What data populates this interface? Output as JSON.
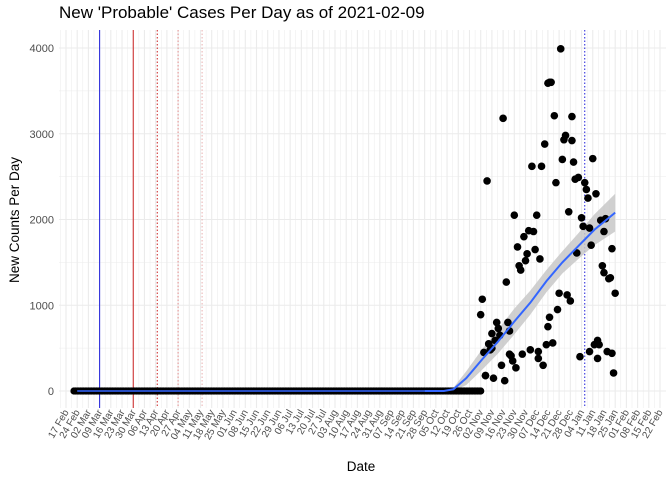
{
  "chart_data": {
    "type": "scatter",
    "title": "New 'Probable' Cases Per Day as of 2021-02-09",
    "xlabel": "Date",
    "ylabel": "New Counts Per Day",
    "ylim": [
      -200,
      4200
    ],
    "yticks": [
      0,
      1000,
      2000,
      3000,
      4000
    ],
    "x_range_days": [
      0,
      371
    ],
    "x_tick_labels": [
      "17 Feb",
      "24 Feb",
      "02 Mar",
      "09 Mar",
      "16 Mar",
      "23 Mar",
      "30 Mar",
      "06 Apr",
      "13 Apr",
      "20 Apr",
      "27 Apr",
      "04 May",
      "11 May",
      "18 May",
      "25 May",
      "01 Jun",
      "08 Jun",
      "15 Jun",
      "22 Jun",
      "29 Jun",
      "06 Jul",
      "13 Jul",
      "20 Jul",
      "27 Jul",
      "03 Aug",
      "10 Aug",
      "17 Aug",
      "24 Aug",
      "31 Aug",
      "07 Sep",
      "14 Sep",
      "21 Sep",
      "28 Sep",
      "05 Oct",
      "12 Oct",
      "19 Oct",
      "26 Oct",
      "02 Nov",
      "09 Nov",
      "16 Nov",
      "23 Nov",
      "30 Nov",
      "07 Dec",
      "14 Dec",
      "21 Dec",
      "28 Dec",
      "04 Jan",
      "11 Jan",
      "18 Jan",
      "25 Jan",
      "01 Feb",
      "08 Feb",
      "15 Feb",
      "22 Feb"
    ],
    "x_tick_days": [
      0,
      7,
      14,
      21,
      28,
      35,
      42,
      49,
      56,
      63,
      70,
      77,
      84,
      91,
      98,
      105,
      112,
      119,
      126,
      133,
      140,
      147,
      154,
      161,
      168,
      175,
      182,
      189,
      196,
      203,
      210,
      217,
      224,
      231,
      238,
      245,
      252,
      259,
      266,
      273,
      280,
      287,
      294,
      301,
      308,
      315,
      322,
      329,
      336,
      343,
      350,
      357,
      364,
      371
    ],
    "zero_series": {
      "name": "zero days",
      "start_day": 5,
      "end_day": 259,
      "value": 0
    },
    "points": [
      [
        259,
        890
      ],
      [
        260,
        1070
      ],
      [
        261,
        450
      ],
      [
        262,
        180
      ],
      [
        263,
        2450
      ],
      [
        264,
        550
      ],
      [
        265,
        480
      ],
      [
        266,
        670
      ],
      [
        267,
        150
      ],
      [
        268,
        590
      ],
      [
        269,
        800
      ],
      [
        270,
        730
      ],
      [
        271,
        650
      ],
      [
        272,
        300
      ],
      [
        273,
        3180
      ],
      [
        274,
        120
      ],
      [
        275,
        1270
      ],
      [
        276,
        800
      ],
      [
        277,
        700
      ],
      [
        278,
        410
      ],
      [
        279,
        350
      ],
      [
        280,
        2050
      ],
      [
        281,
        270
      ],
      [
        282,
        1680
      ],
      [
        283,
        1460
      ],
      [
        284,
        1410
      ],
      [
        285,
        430
      ],
      [
        286,
        1800
      ],
      [
        287,
        1520
      ],
      [
        288,
        1600
      ],
      [
        289,
        1870
      ],
      [
        290,
        480
      ],
      [
        291,
        2620
      ],
      [
        292,
        1860
      ],
      [
        293,
        1650
      ],
      [
        294,
        2050
      ],
      [
        295,
        460
      ],
      [
        296,
        1540
      ],
      [
        297,
        2620
      ],
      [
        298,
        300
      ],
      [
        299,
        2880
      ],
      [
        300,
        540
      ],
      [
        301,
        750
      ],
      [
        302,
        860
      ],
      [
        303,
        3600
      ],
      [
        304,
        560
      ],
      [
        305,
        3210
      ],
      [
        306,
        2430
      ],
      [
        307,
        950
      ],
      [
        308,
        1140
      ],
      [
        309,
        3990
      ],
      [
        310,
        2700
      ],
      [
        311,
        2930
      ],
      [
        312,
        2980
      ],
      [
        313,
        1120
      ],
      [
        314,
        2090
      ],
      [
        315,
        1050
      ],
      [
        316,
        2920
      ],
      [
        317,
        2670
      ],
      [
        318,
        2470
      ],
      [
        319,
        1610
      ],
      [
        320,
        2490
      ],
      [
        321,
        400
      ],
      [
        322,
        2020
      ],
      [
        323,
        1920
      ],
      [
        324,
        2430
      ],
      [
        325,
        2350
      ],
      [
        326,
        2250
      ],
      [
        327,
        1900
      ],
      [
        328,
        1700
      ],
      [
        329,
        2710
      ],
      [
        330,
        540
      ],
      [
        331,
        2300
      ],
      [
        332,
        380
      ],
      [
        333,
        540
      ],
      [
        334,
        1990
      ],
      [
        335,
        1460
      ],
      [
        336,
        1380
      ],
      [
        337,
        2010
      ],
      [
        338,
        460
      ],
      [
        339,
        1310
      ],
      [
        340,
        1320
      ],
      [
        341,
        440
      ],
      [
        342,
        210
      ],
      [
        343,
        1140
      ],
      [
        301,
        3590
      ],
      [
        302,
        3600
      ],
      [
        316,
        3200
      ],
      [
        266,
        500
      ],
      [
        262,
        180
      ],
      [
        277,
        430
      ],
      [
        295,
        380
      ],
      [
        327,
        460
      ],
      [
        332,
        590
      ],
      [
        336,
        1860
      ],
      [
        341,
        1660
      ]
    ],
    "trend": {
      "label": "smooth fit",
      "x_days": [
        224,
        230,
        236,
        242,
        250,
        260,
        270,
        280,
        290,
        300,
        310,
        320,
        330,
        343
      ],
      "y": [
        0,
        0,
        0,
        20,
        150,
        370,
        580,
        810,
        1030,
        1280,
        1500,
        1690,
        1880,
        2080
      ],
      "ci_width": [
        0,
        0,
        0,
        20,
        80,
        120,
        140,
        150,
        140,
        130,
        130,
        150,
        180,
        220
      ]
    },
    "vlines": [
      {
        "name": "blue solid",
        "day": 21,
        "color": "#1f1fd9",
        "style": "solid"
      },
      {
        "name": "red solid",
        "day": 42,
        "color": "#cc2222",
        "style": "solid"
      },
      {
        "name": "red dotted",
        "day": 57,
        "color": "#cc2222",
        "style": "dotted"
      },
      {
        "name": "salmon dotted",
        "day": 70,
        "color": "#e28a8a",
        "style": "dotted"
      },
      {
        "name": "salmon dotted 2",
        "day": 85,
        "color": "#e8b0b0",
        "style": "dotted"
      },
      {
        "name": "blue dotted",
        "day": 324,
        "color": "#1f1fd9",
        "style": "dotted"
      }
    ],
    "colors": {
      "points": "#000000",
      "trend": "#3366ff",
      "ci": "#c8c8c8",
      "grid": "#ebebeb"
    }
  }
}
